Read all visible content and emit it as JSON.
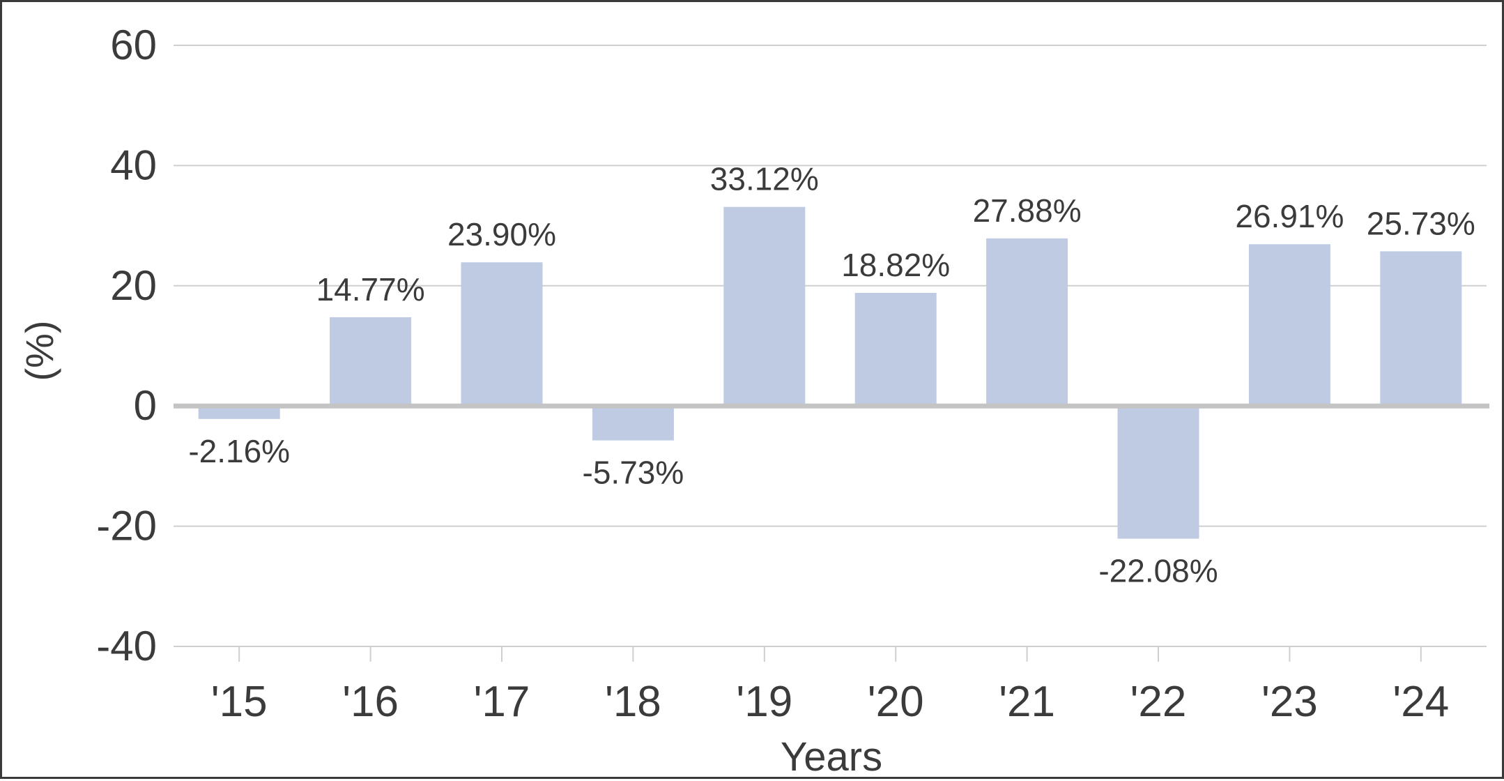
{
  "chart_data": {
    "type": "bar",
    "categories": [
      "'15",
      "'16",
      "'17",
      "'18",
      "'19",
      "'20",
      "'21",
      "'22",
      "'23",
      "'24"
    ],
    "values": [
      -2.16,
      14.77,
      23.9,
      -5.73,
      33.12,
      18.82,
      27.88,
      -22.08,
      26.91,
      25.73
    ],
    "data_labels": [
      "-2.16%",
      "14.77%",
      "23.90%",
      "-5.73%",
      "33.12%",
      "18.82%",
      "27.88%",
      "-22.08%",
      "26.91%",
      "25.73%"
    ],
    "title": "",
    "xlabel": "Years",
    "ylabel": "(%)",
    "ylim": [
      -40,
      60
    ],
    "yticks": [
      60,
      40,
      20,
      0,
      -20,
      -40
    ],
    "ytick_labels": [
      "60",
      "40",
      "20",
      "0",
      "-20",
      "-40"
    ],
    "grid": true,
    "legend": "none",
    "colors": {
      "bar": "#bfcae3",
      "grid": "#cfcfcf",
      "zero_line": "#c4c4c4",
      "text": "#3b3b3b",
      "frame": "#3a3a3a"
    }
  }
}
